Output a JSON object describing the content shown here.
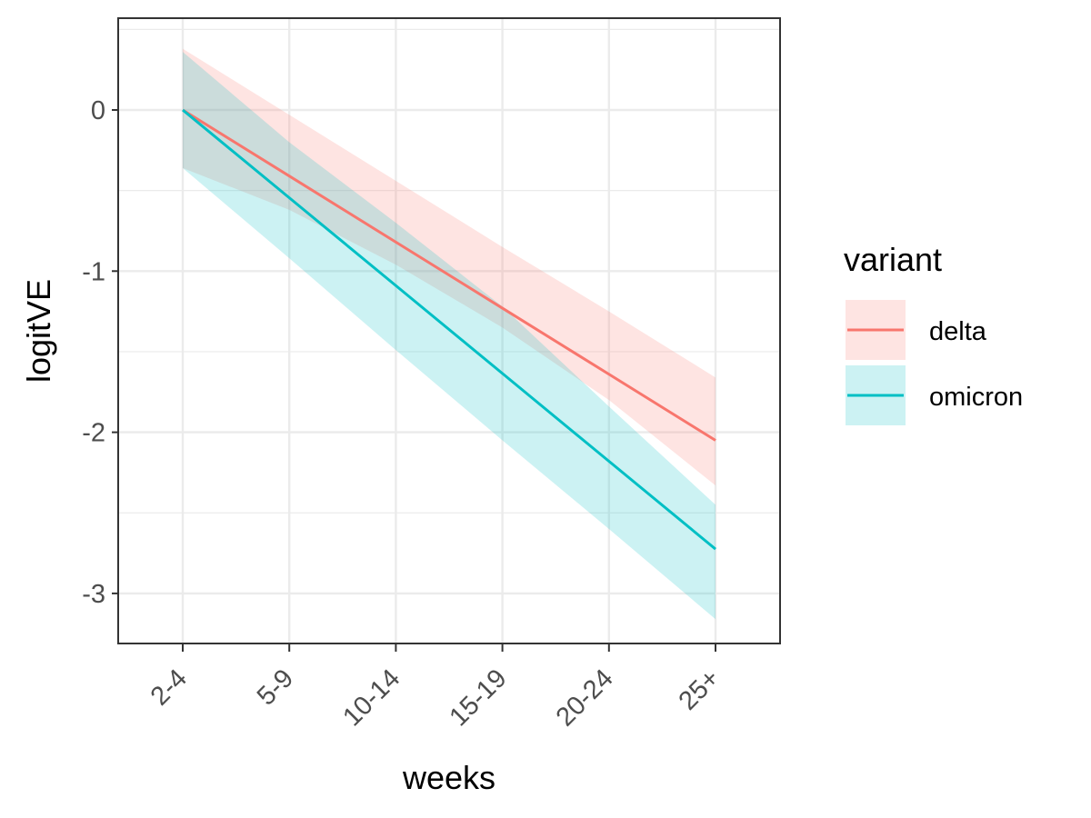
{
  "chart_data": {
    "type": "line",
    "xlabel": "weeks",
    "ylabel": "logitVE",
    "categories": [
      "2-4",
      "5-9",
      "10-14",
      "15-19",
      "20-24",
      "25+"
    ],
    "ylim": [
      -3.3,
      0.55
    ],
    "yticks": [
      0,
      -1,
      -2,
      -3
    ],
    "ytick_labels": [
      "0",
      "-1",
      "-2",
      "-3"
    ],
    "grid": true,
    "legend": {
      "title": "variant",
      "position": "right",
      "entries": [
        "delta",
        "omicron"
      ]
    },
    "series": [
      {
        "name": "delta",
        "color": "#F8766D",
        "values": [
          0,
          -0.41,
          -0.82,
          -1.23,
          -1.64,
          -2.05
        ],
        "lower": [
          -0.36,
          -0.62,
          -0.96,
          -1.35,
          -1.8,
          -2.33
        ],
        "upper": [
          0.38,
          -0.03,
          -0.44,
          -0.85,
          -1.25,
          -1.66
        ]
      },
      {
        "name": "omicron",
        "color": "#00BFC4",
        "values": [
          0,
          -0.545,
          -1.09,
          -1.635,
          -2.18,
          -2.725
        ],
        "lower": [
          -0.36,
          -0.92,
          -1.49,
          -2.05,
          -2.6,
          -3.16
        ],
        "upper": [
          0.36,
          -0.2,
          -0.7,
          -1.22,
          -1.84,
          -2.45
        ]
      }
    ]
  }
}
